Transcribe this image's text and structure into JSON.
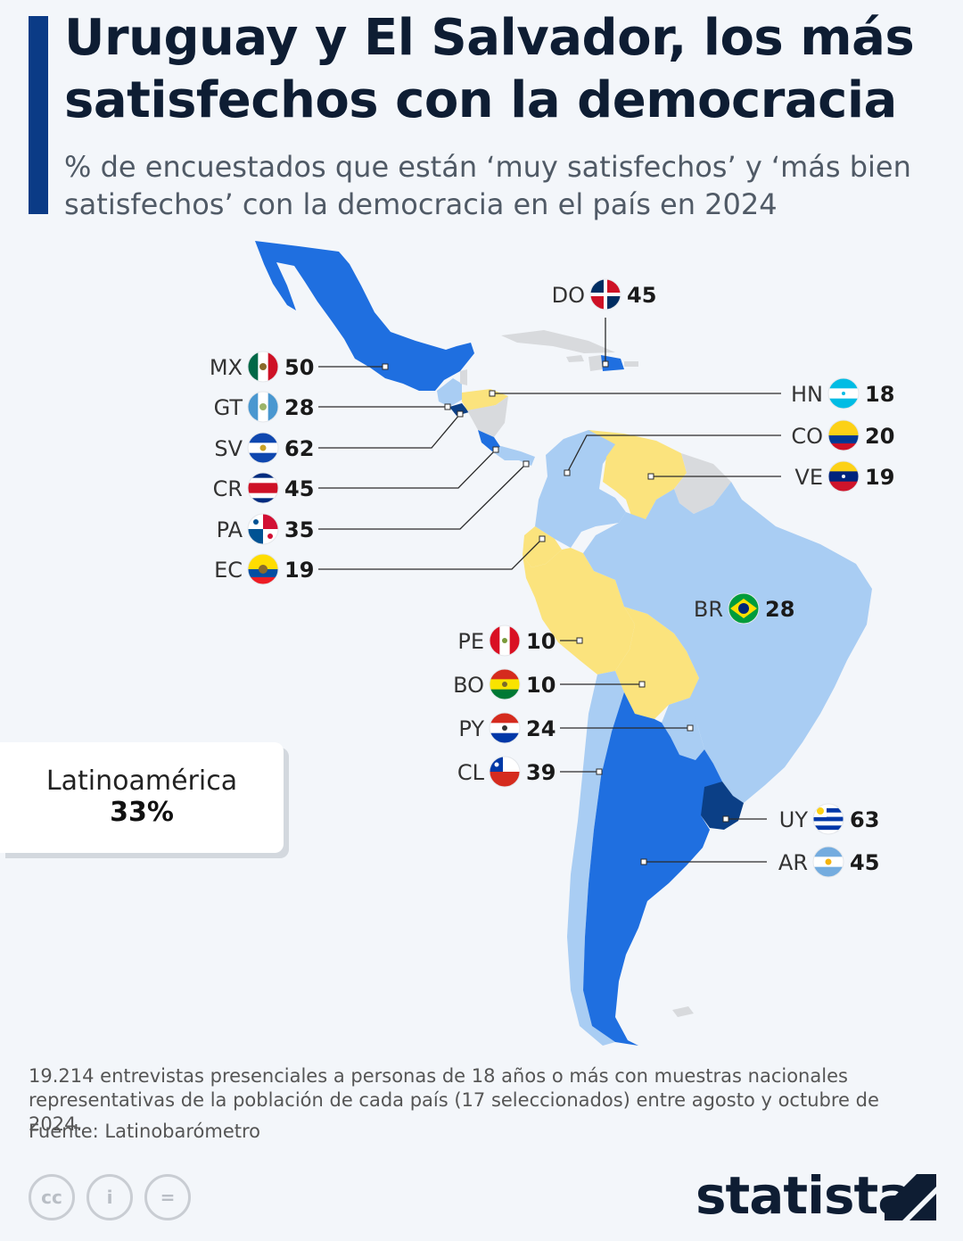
{
  "title": "Uruguay y El Salvador, los más satisfechos con la democracia",
  "subtitle": "% de encuestados que están ‘muy satisfechos’ y ‘más bien satisfechos’ con la democracia en el país en 2024",
  "colors": {
    "accent": "#0b3b86",
    "very_high": "#0b3f86",
    "high": "#1f6fe0",
    "medium": "#a9cdf3",
    "low": "#fbe37d",
    "no_data": "#d8dadd"
  },
  "countries": [
    {
      "code": "MX",
      "value": 50,
      "flag": "mexico-flag-icon"
    },
    {
      "code": "GT",
      "value": 28,
      "flag": "guatemala-flag-icon"
    },
    {
      "code": "SV",
      "value": 62,
      "flag": "el-salvador-flag-icon"
    },
    {
      "code": "CR",
      "value": 45,
      "flag": "costa-rica-flag-icon"
    },
    {
      "code": "PA",
      "value": 35,
      "flag": "panama-flag-icon"
    },
    {
      "code": "EC",
      "value": 19,
      "flag": "ecuador-flag-icon"
    },
    {
      "code": "DO",
      "value": 45,
      "flag": "dominican-republic-flag-icon"
    },
    {
      "code": "HN",
      "value": 18,
      "flag": "honduras-flag-icon"
    },
    {
      "code": "CO",
      "value": 20,
      "flag": "colombia-flag-icon"
    },
    {
      "code": "VE",
      "value": 19,
      "flag": "venezuela-flag-icon"
    },
    {
      "code": "BR",
      "value": 28,
      "flag": "brazil-flag-icon"
    },
    {
      "code": "PE",
      "value": 10,
      "flag": "peru-flag-icon"
    },
    {
      "code": "BO",
      "value": 10,
      "flag": "bolivia-flag-icon"
    },
    {
      "code": "PY",
      "value": 24,
      "flag": "paraguay-flag-icon"
    },
    {
      "code": "CL",
      "value": 39,
      "flag": "chile-flag-icon"
    },
    {
      "code": "UY",
      "value": 63,
      "flag": "uruguay-flag-icon"
    },
    {
      "code": "AR",
      "value": 45,
      "flag": "argentina-flag-icon"
    }
  ],
  "summary": {
    "label": "Latinoamérica",
    "value": "33%"
  },
  "note": "19.214 entrevistas presenciales a personas de 18 años o más con muestras nacionales representativas de la población de cada país (17 seleccionados) entre agosto y octubre de 2024.",
  "source": "Fuente: Latinobarómetro",
  "license_icons": [
    "cc-icon",
    "attribution-icon",
    "no-derivatives-icon"
  ],
  "license_glyphs": [
    "cc",
    "i",
    "="
  ],
  "brand": "statista"
}
